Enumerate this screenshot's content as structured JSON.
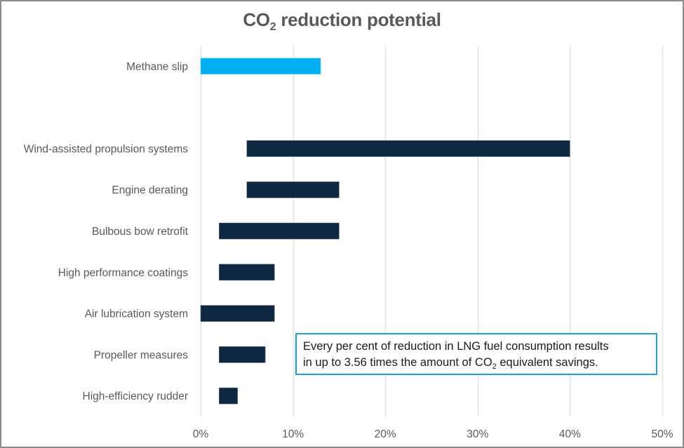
{
  "chart_data": {
    "type": "bar",
    "orientation": "horizontal",
    "subtype": "floating-range",
    "title": "CO2 reduction potential",
    "title_parts": {
      "pre": "CO",
      "sub": "2",
      "post": " reduction potential"
    },
    "xlabel": "",
    "ylabel": "",
    "xlim": [
      0,
      0.5
    ],
    "x_ticks": [
      0,
      0.1,
      0.2,
      0.3,
      0.4,
      0.5
    ],
    "x_tick_labels": [
      "0%",
      "10%",
      "20%",
      "30%",
      "40%",
      "50%"
    ],
    "grid": "vertical",
    "legend": "none",
    "categories": [
      "Methane slip",
      "",
      "Wind-assisted propulsion systems",
      "Engine derating",
      "Bulbous bow retrofit",
      "High performance coatings",
      "Air lubrication system",
      "Propeller measures",
      "High-efficiency rudder"
    ],
    "series": [
      {
        "name": "Reduction range",
        "ranges": [
          {
            "category": "Methane slip",
            "low": 0.0,
            "high": 0.13,
            "color": "#00b0f0"
          },
          {
            "category": "",
            "low": null,
            "high": null,
            "color": null
          },
          {
            "category": "Wind-assisted propulsion systems",
            "low": 0.05,
            "high": 0.4,
            "color": "#0e2841"
          },
          {
            "category": "Engine derating",
            "low": 0.05,
            "high": 0.15,
            "color": "#0e2841"
          },
          {
            "category": "Bulbous bow retrofit",
            "low": 0.02,
            "high": 0.15,
            "color": "#0e2841"
          },
          {
            "category": "High performance coatings",
            "low": 0.02,
            "high": 0.08,
            "color": "#0e2841"
          },
          {
            "category": "Air lubrication system",
            "low": 0.0,
            "high": 0.08,
            "color": "#0e2841"
          },
          {
            "category": "Propeller measures",
            "low": 0.02,
            "high": 0.07,
            "color": "#0e2841"
          },
          {
            "category": "High-efficiency rudder",
            "low": 0.02,
            "high": 0.04,
            "color": "#0e2841"
          }
        ]
      }
    ],
    "annotation": {
      "line1": "Every per cent of reduction in LNG fuel consumption results",
      "line2_pre": "in up to 3.56 times the amount of CO",
      "line2_sub": "2",
      "line2_post": " equivalent savings."
    }
  },
  "colors": {
    "highlight": "#00b0f0",
    "bar": "#0e2841",
    "note_border": "#1ea0d8",
    "grid": "#e3e3e3",
    "text": "#595959"
  }
}
